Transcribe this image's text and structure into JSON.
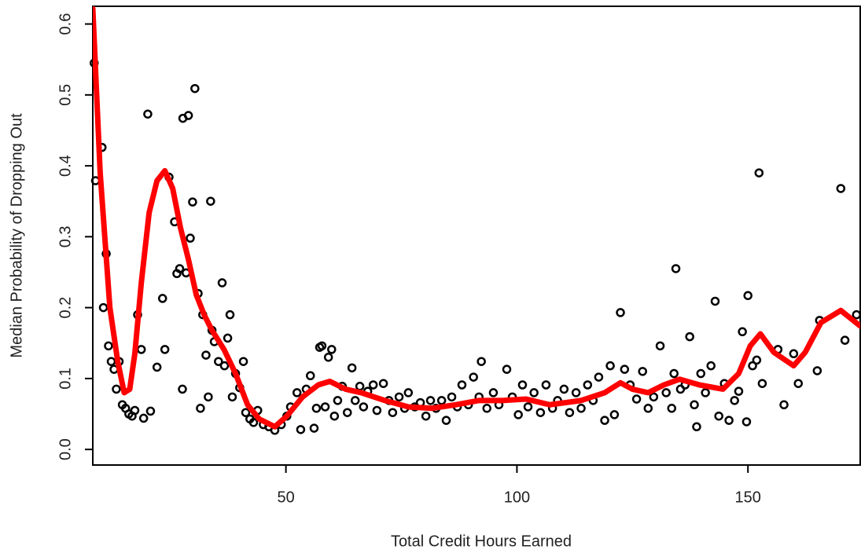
{
  "chart_data": {
    "type": "scatter",
    "xlabel": "Total Credit Hours Earned",
    "ylabel": "Median Probability of Dropping Out",
    "xlim": [
      8.2,
      174.3
    ],
    "ylim": [
      -0.022,
      0.625
    ],
    "xticks": [
      50,
      100,
      150
    ],
    "yticks": [
      {
        "value": 0,
        "label": "0.0"
      },
      0.1,
      0.2,
      0.3,
      0.4,
      0.5,
      0.6
    ],
    "series": [
      {
        "type": "scatter",
        "color": "#000000",
        "x": [
          8.5,
          8.8,
          10.2,
          11.1,
          10.5,
          11.6,
          12.2,
          12.8,
          13.3,
          13.9,
          14.6,
          15.3,
          16,
          16.7,
          17.3,
          17.9,
          18.7,
          19.2,
          20.1,
          20.7,
          22.1,
          23.3,
          23.8,
          24.7,
          25.9,
          26.4,
          27,
          27.6,
          27.7,
          28.4,
          28.9,
          29.3,
          29.8,
          30.3,
          31,
          31.5,
          32,
          32.7,
          33.2,
          33.7,
          34,
          34.5,
          35.4,
          36.2,
          36.7,
          37.4,
          37.9,
          38.4,
          39.1,
          40,
          40.8,
          41.3,
          42.2,
          43,
          43.9,
          45.1,
          46.3,
          47.6,
          49,
          50.2,
          51,
          52.4,
          53.2,
          54.4,
          55.3,
          56.1,
          56.6,
          57.3,
          57.8,
          58.5,
          59.2,
          59.9,
          60.5,
          61.2,
          62.2,
          63.3,
          64.3,
          65,
          66,
          66.8,
          67.7,
          68.9,
          69.7,
          71.1,
          72.3,
          73.1,
          74.5,
          75.7,
          76.5,
          77.9,
          79.1,
          80.3,
          81.3,
          82.5,
          83.7,
          84.7,
          85.9,
          87.1,
          88.1,
          89.5,
          90.6,
          91.8,
          92.3,
          93.5,
          94.9,
          96.1,
          97.8,
          99,
          100.3,
          101.2,
          102.4,
          103.7,
          105.1,
          106.3,
          107.7,
          108.8,
          110.2,
          111.4,
          112.8,
          113.9,
          115.3,
          116.5,
          117.7,
          119,
          120.2,
          121.1,
          122.4,
          123.3,
          124.5,
          125.9,
          127.2,
          128.4,
          129.6,
          131,
          132.3,
          133.5,
          134,
          134.4,
          135.4,
          136.4,
          137.4,
          138.4,
          138.9,
          139.8,
          140.8,
          142,
          142.9,
          143.7,
          144.9,
          145.9,
          147.1,
          148,
          148.8,
          149.7,
          150,
          151,
          151.9,
          152.4,
          153.1,
          156.5,
          157.8,
          159.9,
          160.9,
          165,
          165.5,
          170.1,
          171,
          173.5
        ],
        "values": [
          0.545,
          0.379,
          0.426,
          0.276,
          0.2,
          0.146,
          0.124,
          0.113,
          0.085,
          0.124,
          0.063,
          0.058,
          0.05,
          0.047,
          0.055,
          0.19,
          0.141,
          0.044,
          0.473,
          0.054,
          0.116,
          0.213,
          0.141,
          0.384,
          0.321,
          0.248,
          0.255,
          0.085,
          0.467,
          0.249,
          0.471,
          0.298,
          0.349,
          0.509,
          0.22,
          0.058,
          0.19,
          0.133,
          0.074,
          0.35,
          0.168,
          0.152,
          0.124,
          0.235,
          0.118,
          0.157,
          0.19,
          0.074,
          0.107,
          0.087,
          0.124,
          0.052,
          0.043,
          0.038,
          0.055,
          0.035,
          0.032,
          0.027,
          0.035,
          0.047,
          0.06,
          0.08,
          0.028,
          0.085,
          0.104,
          0.03,
          0.058,
          0.144,
          0.146,
          0.06,
          0.13,
          0.141,
          0.047,
          0.069,
          0.089,
          0.052,
          0.115,
          0.069,
          0.089,
          0.06,
          0.082,
          0.091,
          0.055,
          0.093,
          0.069,
          0.052,
          0.074,
          0.058,
          0.08,
          0.06,
          0.066,
          0.047,
          0.069,
          0.058,
          0.069,
          0.041,
          0.074,
          0.06,
          0.091,
          0.063,
          0.102,
          0.074,
          0.124,
          0.058,
          0.08,
          0.063,
          0.113,
          0.074,
          0.049,
          0.091,
          0.06,
          0.08,
          0.052,
          0.091,
          0.058,
          0.069,
          0.085,
          0.052,
          0.08,
          0.058,
          0.091,
          0.069,
          0.102,
          0.041,
          0.118,
          0.049,
          0.193,
          0.113,
          0.091,
          0.071,
          0.11,
          0.058,
          0.074,
          0.146,
          0.08,
          0.058,
          0.107,
          0.255,
          0.085,
          0.091,
          0.159,
          0.063,
          0.032,
          0.107,
          0.08,
          0.118,
          0.209,
          0.047,
          0.093,
          0.041,
          0.069,
          0.082,
          0.166,
          0.039,
          0.217,
          0.118,
          0.126,
          0.39,
          0.093,
          0.141,
          0.063,
          0.135,
          0.093,
          0.111,
          0.182,
          0.368,
          0.154,
          0.19
        ]
      },
      {
        "type": "line",
        "color": "#ff0000",
        "x": [
          8.2,
          9.8,
          11.9,
          13.6,
          15,
          16.2,
          17.3,
          18.7,
          20.4,
          22.1,
          23.8,
          25.5,
          27.2,
          28.9,
          30.6,
          32.3,
          34,
          36.6,
          39.1,
          41.7,
          44.2,
          47.6,
          50.2,
          53.6,
          57,
          59.5,
          62.9,
          66.3,
          71.4,
          76.5,
          81.6,
          86.7,
          91.8,
          96.9,
          102,
          107.1,
          113.9,
          119,
          122.4,
          125,
          128.4,
          131.8,
          135.2,
          139.5,
          144.6,
          148,
          150.5,
          152.7,
          155.6,
          159.9,
          162.4,
          165.8,
          170.1,
          174.3
        ],
        "values": [
          0.622,
          0.39,
          0.2,
          0.124,
          0.08,
          0.085,
          0.135,
          0.235,
          0.334,
          0.379,
          0.393,
          0.368,
          0.312,
          0.268,
          0.218,
          0.19,
          0.168,
          0.141,
          0.107,
          0.063,
          0.043,
          0.032,
          0.047,
          0.074,
          0.091,
          0.096,
          0.085,
          0.08,
          0.069,
          0.06,
          0.058,
          0.063,
          0.069,
          0.069,
          0.071,
          0.063,
          0.069,
          0.08,
          0.094,
          0.085,
          0.08,
          0.091,
          0.099,
          0.091,
          0.085,
          0.107,
          0.146,
          0.163,
          0.137,
          0.118,
          0.137,
          0.179,
          0.196,
          0.174
        ]
      }
    ]
  }
}
